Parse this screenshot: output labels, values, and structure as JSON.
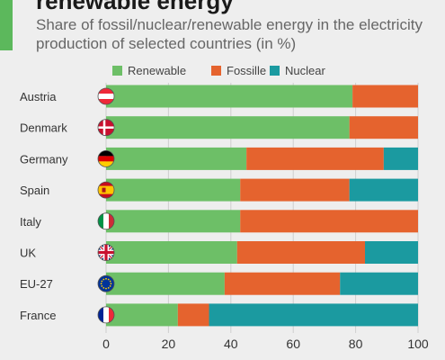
{
  "header": {
    "title": "renewable energy",
    "subtitle": "Share of fossil/nuclear/renewable energy in the electricity production of selected countries (in %)"
  },
  "chart_data": {
    "type": "bar",
    "orientation": "horizontal",
    "stacked": true,
    "categories": [
      "Austria",
      "Denmark",
      "Germany",
      "Spain",
      "Italy",
      "UK",
      "EU-27",
      "France"
    ],
    "series": [
      {
        "name": "Renewable",
        "color": "#6dbf67",
        "values": [
          79,
          78,
          45,
          43,
          43,
          42,
          38,
          23
        ]
      },
      {
        "name": "Fossille",
        "color": "#e5632e",
        "values": [
          21,
          22,
          44,
          35,
          57,
          41,
          37,
          10
        ]
      },
      {
        "name": "Nuclear",
        "color": "#1b9aa0",
        "values": [
          0,
          0,
          11,
          22,
          0,
          17,
          25,
          67
        ]
      }
    ],
    "xlim": [
      0,
      100
    ],
    "xticks": [
      0,
      20,
      40,
      60,
      80,
      100
    ],
    "grid": true,
    "legend_position": "top",
    "flag_icons": [
      "austria-flag-icon",
      "denmark-flag-icon",
      "germany-flag-icon",
      "spain-flag-icon",
      "italy-flag-icon",
      "uk-flag-icon",
      "eu-flag-icon",
      "france-flag-icon"
    ]
  }
}
